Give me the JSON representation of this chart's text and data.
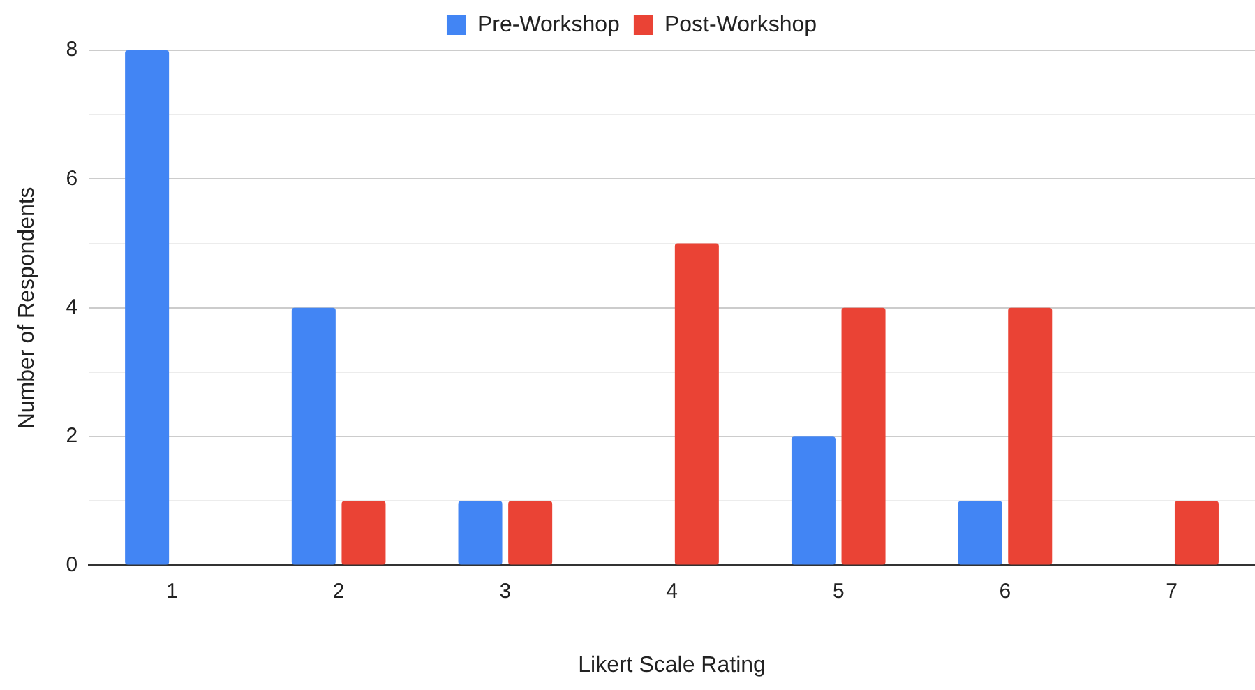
{
  "chart_data": {
    "type": "bar",
    "xlabel": "Likert Scale Rating",
    "ylabel": "Number of Respondents",
    "categories": [
      "1",
      "2",
      "3",
      "4",
      "5",
      "6",
      "7"
    ],
    "series": [
      {
        "name": "Pre-Workshop",
        "color": "#4285f4",
        "values": [
          8,
          4,
          1,
          0,
          2,
          1,
          0
        ]
      },
      {
        "name": "Post-Workshop",
        "color": "#ea4335",
        "values": [
          0,
          1,
          1,
          5,
          4,
          4,
          1
        ]
      }
    ],
    "ylim": [
      0,
      8
    ],
    "yticks": [
      0,
      {
        "value": 1,
        "label": null
      },
      2,
      {
        "value": 3,
        "label": null
      },
      4,
      {
        "value": 5,
        "label": null
      },
      6,
      {
        "value": 7,
        "label": null
      },
      8
    ],
    "grid": "y",
    "legend": "top"
  }
}
